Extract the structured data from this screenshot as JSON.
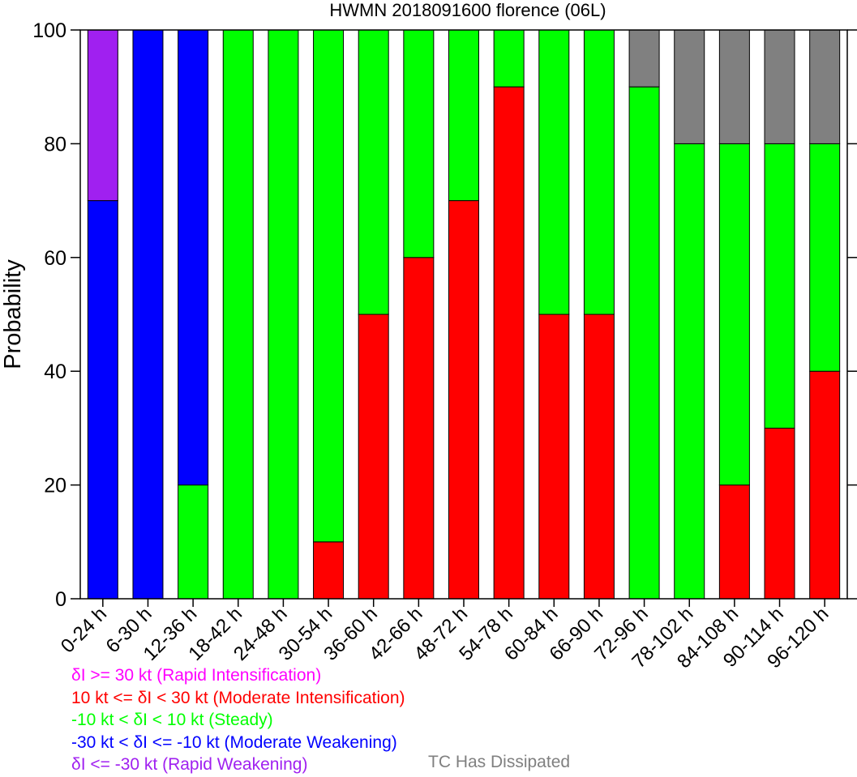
{
  "chart_data": {
    "type": "bar",
    "title": "HWMN 2018091600 florence (06L)",
    "xlabel": "",
    "ylabel": "Probability",
    "ylim": [
      0,
      100
    ],
    "yticks": [
      0,
      20,
      40,
      60,
      80,
      100
    ],
    "stacked": true,
    "categories": [
      "0-24 h",
      "6-30 h",
      "12-36 h",
      "18-42 h",
      "24-48 h",
      "30-54 h",
      "36-60 h",
      "42-66 h",
      "48-72 h",
      "54-78 h",
      "60-84 h",
      "66-90 h",
      "72-96 h",
      "78-102 h",
      "84-108 h",
      "90-114 h",
      "96-120 h"
    ],
    "series": [
      {
        "key": "ri",
        "color": "#ff00ff",
        "values": [
          0,
          0,
          0,
          0,
          0,
          0,
          0,
          0,
          0,
          0,
          0,
          0,
          0,
          0,
          0,
          0,
          0
        ]
      },
      {
        "key": "mi",
        "color": "#ff0000",
        "values": [
          0,
          0,
          0,
          0,
          0,
          10,
          50,
          60,
          70,
          90,
          50,
          50,
          0,
          0,
          20,
          30,
          40
        ]
      },
      {
        "key": "st",
        "color": "#00ff00",
        "values": [
          0,
          0,
          20,
          100,
          100,
          90,
          50,
          40,
          30,
          10,
          50,
          50,
          90,
          80,
          60,
          50,
          40
        ]
      },
      {
        "key": "mw",
        "color": "#0000ff",
        "values": [
          70,
          100,
          80,
          0,
          0,
          0,
          0,
          0,
          0,
          0,
          0,
          0,
          0,
          0,
          0,
          0,
          0
        ]
      },
      {
        "key": "rw",
        "color": "#a020f0",
        "values": [
          30,
          0,
          0,
          0,
          0,
          0,
          0,
          0,
          0,
          0,
          0,
          0,
          0,
          0,
          0,
          0,
          0
        ]
      },
      {
        "key": "dis",
        "color": "#808080",
        "values": [
          0,
          0,
          0,
          0,
          0,
          0,
          0,
          0,
          0,
          0,
          0,
          0,
          10,
          20,
          20,
          20,
          20
        ]
      }
    ]
  },
  "legend": {
    "ri": {
      "text": "δI >= 30 kt (Rapid Intensification)",
      "color": "#ff00ff"
    },
    "mi": {
      "text": "10 kt <= δI < 30 kt (Moderate Intensification)",
      "color": "#ff0000"
    },
    "st": {
      "text": "-10 kt < δI < 10 kt (Steady)",
      "color": "#00ff00"
    },
    "mw": {
      "text": "-30 kt < δI <= -10 kt (Moderate Weakening)",
      "color": "#0000ff"
    },
    "rw": {
      "text": "δI <= -30 kt (Rapid Weakening)",
      "color": "#a020f0"
    },
    "dis": {
      "text": "TC Has Dissipated",
      "color": "#808080"
    }
  }
}
